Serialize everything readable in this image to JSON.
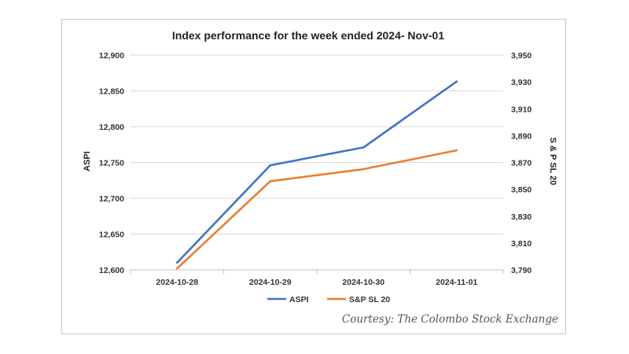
{
  "chart_data": {
    "type": "line",
    "title": "Index performance for the week ended 2024- Nov-01",
    "categories": [
      "2024-10-28",
      "2024-10-29",
      "2024-10-30",
      "2024-11-01"
    ],
    "series": [
      {
        "name": "ASPI",
        "axis": "left",
        "color": "#4472C4",
        "values": [
          12610,
          12746,
          12771,
          12863
        ]
      },
      {
        "name": "S&P SL 20",
        "axis": "right",
        "color": "#ED7D31",
        "values": [
          3791,
          3856,
          3865,
          3879
        ]
      }
    ],
    "ylabel_left": "ASPI",
    "ylabel_right": "S & P SL 20",
    "ylim_left": [
      12600,
      12900
    ],
    "ylim_right": [
      3790,
      3950
    ],
    "yticks_left": [
      "12,600",
      "12,650",
      "12,700",
      "12,750",
      "12,800",
      "12,850",
      "12,900"
    ],
    "yticks_right": [
      "3,790",
      "3,810",
      "3,830",
      "3,850",
      "3,870",
      "3,890",
      "3,910",
      "3,930",
      "3,950"
    ],
    "grid": true,
    "legend_position": "bottom"
  },
  "credit": "Courtesy: The Colombo Stock Exchange"
}
